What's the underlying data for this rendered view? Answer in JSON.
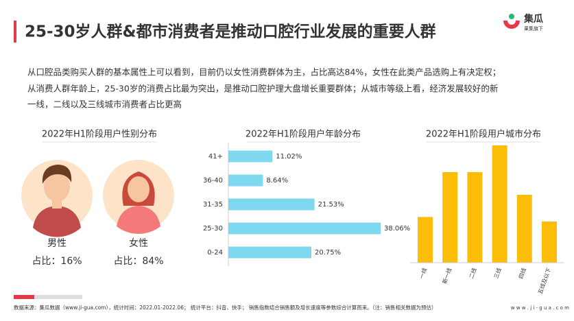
{
  "header": {
    "title": "25-30岁人群&都市消费者是推动口腔行业发展的重要人群",
    "logo": "集瓜",
    "logo_sub": "果集旗下"
  },
  "paragraph": [
    "从口腔品类购买人群的基本属性上可以看到，目前仍以女性消费群体为主，占比高达84%，女性在此类产品选购上有决定权；",
    "从消费人群年龄上，25-30岁的消费占比最为突出，是推动口腔护理大盘增长重要群体；从城市等级上看，经济发展较好的新",
    "一线，二线以及三线城市消费者占比更高"
  ],
  "gender": {
    "title": "2022年H1阶段用户性别分布",
    "groups": [
      {
        "label": "男性",
        "share": "占比：16%"
      },
      {
        "label": "女性",
        "share": "占比：84%"
      }
    ]
  },
  "chart_data": [
    {
      "type": "hbar",
      "title": "2022年H1阶段用户年龄分布",
      "categories": [
        "41+",
        "36-40",
        "31-35",
        "25-30",
        "0-24"
      ],
      "values": [
        11.02,
        8.64,
        21.53,
        38.06,
        20.75
      ],
      "value_labels": [
        "11.02%",
        "8.64%",
        "21.53%",
        "38.06%",
        "20.75%"
      ],
      "color": "#7fd7f0"
    },
    {
      "type": "bar",
      "title": "2022年H1阶段用户城市分布",
      "categories": [
        "一线",
        "新一线",
        "二线",
        "三线",
        "四线",
        "五线及以下"
      ],
      "values": [
        10.1,
        20,
        20,
        25.9,
        15,
        9.1
      ],
      "color": "#fbbd08"
    }
  ],
  "footer": {
    "source": "数据来源：集瓜数据（www.ji-gua.com），统计时间：2022.01-2022.06；    统计平台：抖音、快手；      销售指数结合销售额及增长速度等参数综合计算而来。（注：销售相关数据为预估）",
    "site": "w w w . j i - g u a . c o m"
  }
}
